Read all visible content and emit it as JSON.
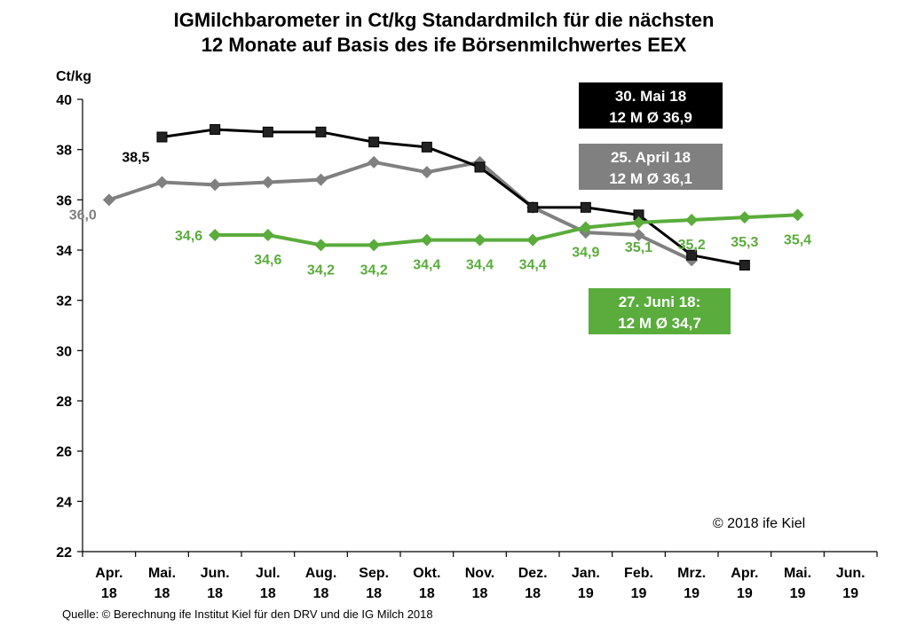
{
  "chart_data": {
    "type": "line",
    "title_lines": [
      "IGMilchbarometer in Ct/kg Standardmilch für die nächsten",
      "12 Monate auf Basis des ife Börsenmilchwertes EEX"
    ],
    "ylabel": "Ct/kg",
    "ylim": [
      22,
      40
    ],
    "yticks": [
      "22",
      "24",
      "26",
      "28",
      "30",
      "32",
      "34",
      "36",
      "38",
      "40"
    ],
    "categories": [
      [
        "Apr.",
        "18"
      ],
      [
        "Mai.",
        "18"
      ],
      [
        "Jun.",
        "18"
      ],
      [
        "Jul.",
        "18"
      ],
      [
        "Aug.",
        "18"
      ],
      [
        "Sep.",
        "18"
      ],
      [
        "Okt.",
        "18"
      ],
      [
        "Nov.",
        "18"
      ],
      [
        "Dez.",
        "18"
      ],
      [
        "Jan.",
        "19"
      ],
      [
        "Feb.",
        "19"
      ],
      [
        "Mrz.",
        "19"
      ],
      [
        "Apr.",
        "19"
      ],
      [
        "Mai.",
        "19"
      ],
      [
        "Jun.",
        "19"
      ]
    ],
    "series": [
      {
        "name": "25. April 18",
        "average_label": "12 M Ø 36,1",
        "color": "#808080",
        "marker": "diamond",
        "values": [
          36.0,
          36.7,
          36.6,
          36.7,
          36.8,
          37.5,
          37.1,
          37.5,
          35.7,
          34.7,
          34.6,
          33.6,
          null,
          null,
          null
        ],
        "data_labels": [
          {
            "index": 0,
            "text": "36,0"
          }
        ]
      },
      {
        "name": "30. Mai 18",
        "average_label": "12 M Ø 36,9",
        "color": "#000000",
        "marker": "square",
        "values": [
          null,
          38.5,
          38.8,
          38.7,
          38.7,
          38.3,
          38.1,
          37.3,
          35.7,
          35.7,
          35.4,
          33.8,
          33.4,
          null,
          null
        ],
        "data_labels": [
          {
            "index": 1,
            "text": "38,5"
          }
        ]
      },
      {
        "name": "27. Juni 18:",
        "average_label": "12 M Ø 34,7",
        "color": "#5aac3c",
        "marker": "diamond",
        "values": [
          null,
          null,
          34.6,
          34.6,
          34.2,
          34.2,
          34.4,
          34.4,
          34.4,
          34.9,
          35.1,
          35.2,
          35.3,
          35.4,
          null
        ],
        "data_labels": [
          {
            "index": 2,
            "text": "34,6"
          },
          {
            "index": 3,
            "text": "34,6"
          },
          {
            "index": 4,
            "text": "34,2"
          },
          {
            "index": 5,
            "text": "34,2"
          },
          {
            "index": 6,
            "text": "34,4"
          },
          {
            "index": 7,
            "text": "34,4"
          },
          {
            "index": 8,
            "text": "34,4"
          },
          {
            "index": 9,
            "text": "34,9"
          },
          {
            "index": 10,
            "text": "35,1"
          },
          {
            "index": 11,
            "text": "35,2"
          },
          {
            "index": 12,
            "text": "35,3"
          },
          {
            "index": 13,
            "text": "35,4"
          }
        ]
      }
    ],
    "legend_boxes": [
      {
        "series": "30. Mai 18",
        "line1": "30. Mai 18",
        "line2": "12 M Ø 36,9",
        "bg": "#000000"
      },
      {
        "series": "25. April 18",
        "line1": "25. April 18",
        "line2": "12 M Ø 36,1",
        "bg": "#808080"
      },
      {
        "series": "27. Juni 18:",
        "line1": "27. Juni 18:",
        "line2": "12 M Ø 34,7",
        "bg": "#5aac3c"
      }
    ],
    "copyright": "© 2018 ife Kiel",
    "source": "Quelle: © Berechnung  ife Institut Kiel für den DRV und die IG Milch 2018",
    "grid": false
  }
}
